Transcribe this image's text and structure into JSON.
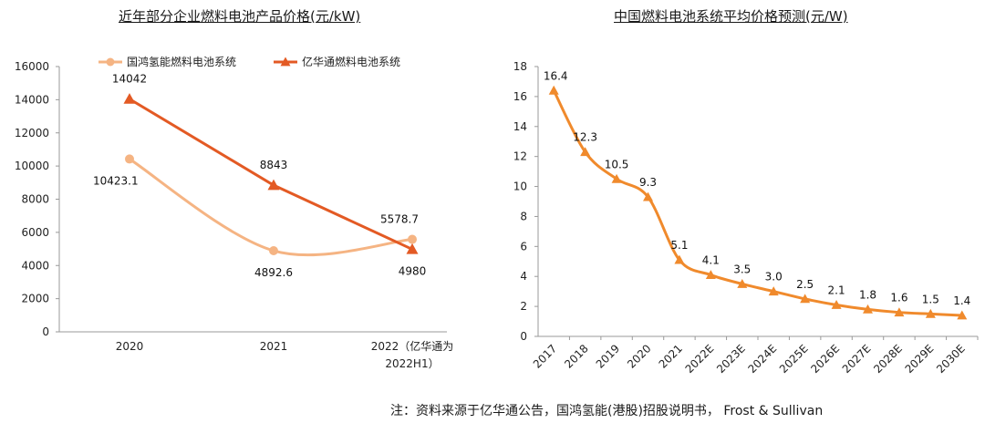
{
  "chart_data": [
    {
      "type": "line",
      "title": "近年部分企业燃料电池产品价格(元/kW)",
      "categories": [
        "2020",
        "2021",
        "2022（亿华通为2022H1）"
      ],
      "category_lines": [
        [
          "2020"
        ],
        [
          "2021"
        ],
        [
          "2022（亿华通为",
          "2022H1）"
        ]
      ],
      "yticks": [
        "0",
        "2000",
        "4000",
        "6000",
        "8000",
        "10000",
        "12000",
        "14000",
        "16000"
      ],
      "ylim": [
        0,
        16000
      ],
      "legend_position": "top",
      "series": [
        {
          "name": "国鸿氢能燃料电池系统",
          "values": [
            10423.1,
            4892.6,
            5578.7
          ],
          "labels": [
            "10423.1",
            "4892.6",
            "5578.7"
          ],
          "color": "#f5b483",
          "marker": "circle",
          "smooth": true
        },
        {
          "name": "亿华通燃料电池系统",
          "values": [
            14042,
            8843,
            4980
          ],
          "labels": [
            "14042",
            "8843",
            "4980"
          ],
          "color": "#e35a24",
          "marker": "triangle",
          "smooth": false
        }
      ]
    },
    {
      "type": "line",
      "title": "中国燃料电池系统平均价格预测(元/W)",
      "categories": [
        "2017",
        "2018",
        "2019",
        "2020",
        "2021",
        "2022E",
        "2023E",
        "2024E",
        "2025E",
        "2026E",
        "2027E",
        "2028E",
        "2029E",
        "2030E"
      ],
      "yticks": [
        "0",
        "2",
        "4",
        "6",
        "8",
        "10",
        "12",
        "14",
        "16",
        "18"
      ],
      "ylim": [
        0,
        18
      ],
      "series": [
        {
          "name": "平均价格",
          "values": [
            16.4,
            12.3,
            10.5,
            9.3,
            5.1,
            4.1,
            3.5,
            3.0,
            2.5,
            2.1,
            1.8,
            1.6,
            1.5,
            1.4
          ],
          "labels": [
            "16.4",
            "12.3",
            "10.5",
            "9.3",
            "5.1",
            "4.1",
            "3.5",
            "3.0",
            "2.5",
            "2.1",
            "1.8",
            "1.6",
            "1.5",
            "1.4"
          ],
          "color": "#f08a2c",
          "marker": "triangle",
          "smooth": true
        }
      ]
    }
  ],
  "source_note": "注：资料来源于亿华通公告，国鸿氢能(港股)招股说明书，  Frost & Sullivan"
}
